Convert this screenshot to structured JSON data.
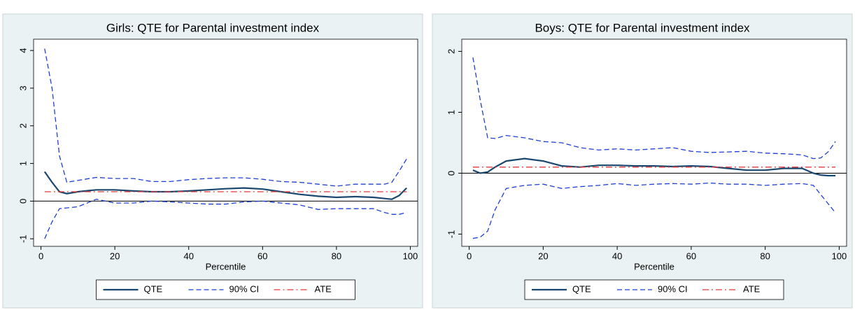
{
  "chart_data": [
    {
      "type": "line",
      "title": "Girls: QTE for Parental investment index",
      "xlabel": "Percentile",
      "x": [
        1,
        3,
        5,
        7,
        10,
        15,
        20,
        25,
        30,
        35,
        40,
        45,
        50,
        55,
        60,
        65,
        70,
        75,
        80,
        85,
        90,
        93,
        95,
        97,
        99
      ],
      "xlim": [
        -2,
        102
      ],
      "xticks": [
        0,
        20,
        40,
        60,
        80,
        100
      ],
      "ylim": [
        -1.2,
        4.3
      ],
      "yticks": [
        -1,
        0,
        1,
        2,
        3,
        4
      ],
      "series": [
        {
          "name": "QTE",
          "color": "#1a476f",
          "style": "solid",
          "values": [
            0.78,
            0.5,
            0.25,
            0.2,
            0.25,
            0.3,
            0.3,
            0.27,
            0.25,
            0.25,
            0.27,
            0.3,
            0.33,
            0.35,
            0.32,
            0.25,
            0.18,
            0.13,
            0.1,
            0.12,
            0.1,
            0.07,
            0.05,
            0.15,
            0.35
          ]
        },
        {
          "name": "90% CI",
          "color": "#1f3fd6",
          "style": "dash",
          "values": [
            4.05,
            3.0,
            1.2,
            0.5,
            0.55,
            0.63,
            0.6,
            0.6,
            0.52,
            0.52,
            0.57,
            0.6,
            0.62,
            0.62,
            0.58,
            0.52,
            0.5,
            0.45,
            0.4,
            0.45,
            0.45,
            0.45,
            0.5,
            0.8,
            1.12
          ],
          "lower": [
            -1.0,
            -0.55,
            -0.2,
            -0.18,
            -0.15,
            0.05,
            -0.05,
            -0.05,
            0.0,
            -0.02,
            -0.05,
            -0.08,
            -0.08,
            -0.02,
            0.0,
            -0.05,
            -0.1,
            -0.22,
            -0.2,
            -0.2,
            -0.2,
            -0.3,
            -0.35,
            -0.35,
            -0.3
          ]
        },
        {
          "name": "ATE",
          "color": "#e03a3a",
          "style": "dashdot",
          "x": [
            1,
            99
          ],
          "values": [
            0.25,
            0.25
          ]
        }
      ]
    },
    {
      "type": "line",
      "title": "Boys: QTE for Parental investment index",
      "xlabel": "Percentile",
      "x": [
        1,
        3,
        5,
        7,
        10,
        15,
        20,
        25,
        30,
        35,
        40,
        45,
        50,
        55,
        60,
        65,
        70,
        75,
        80,
        85,
        90,
        93,
        95,
        97,
        99
      ],
      "xlim": [
        -2,
        102
      ],
      "xticks": [
        0,
        20,
        40,
        60,
        80,
        100
      ],
      "ylim": [
        -1.2,
        2.2
      ],
      "yticks": [
        -1,
        0,
        1,
        2
      ],
      "series": [
        {
          "name": "QTE",
          "color": "#1a476f",
          "style": "solid",
          "values": [
            0.05,
            0.0,
            0.02,
            0.1,
            0.2,
            0.24,
            0.2,
            0.12,
            0.1,
            0.13,
            0.13,
            0.12,
            0.12,
            0.11,
            0.12,
            0.11,
            0.08,
            0.05,
            0.05,
            0.08,
            0.08,
            0.0,
            -0.03,
            -0.04,
            -0.04
          ]
        },
        {
          "name": "90% CI",
          "color": "#1f3fd6",
          "style": "dash",
          "values": [
            1.9,
            1.2,
            0.58,
            0.57,
            0.62,
            0.58,
            0.52,
            0.5,
            0.42,
            0.38,
            0.4,
            0.38,
            0.4,
            0.42,
            0.36,
            0.34,
            0.35,
            0.36,
            0.33,
            0.32,
            0.3,
            0.24,
            0.25,
            0.35,
            0.52
          ],
          "lower": [
            -1.07,
            -1.05,
            -0.95,
            -0.6,
            -0.25,
            -0.2,
            -0.18,
            -0.25,
            -0.22,
            -0.2,
            -0.17,
            -0.2,
            -0.18,
            -0.17,
            -0.18,
            -0.16,
            -0.18,
            -0.18,
            -0.2,
            -0.18,
            -0.17,
            -0.2,
            -0.35,
            -0.5,
            -0.65
          ]
        },
        {
          "name": "ATE",
          "color": "#e03a3a",
          "style": "dashdot",
          "x": [
            1,
            99
          ],
          "values": [
            0.1,
            0.1
          ]
        }
      ]
    }
  ]
}
